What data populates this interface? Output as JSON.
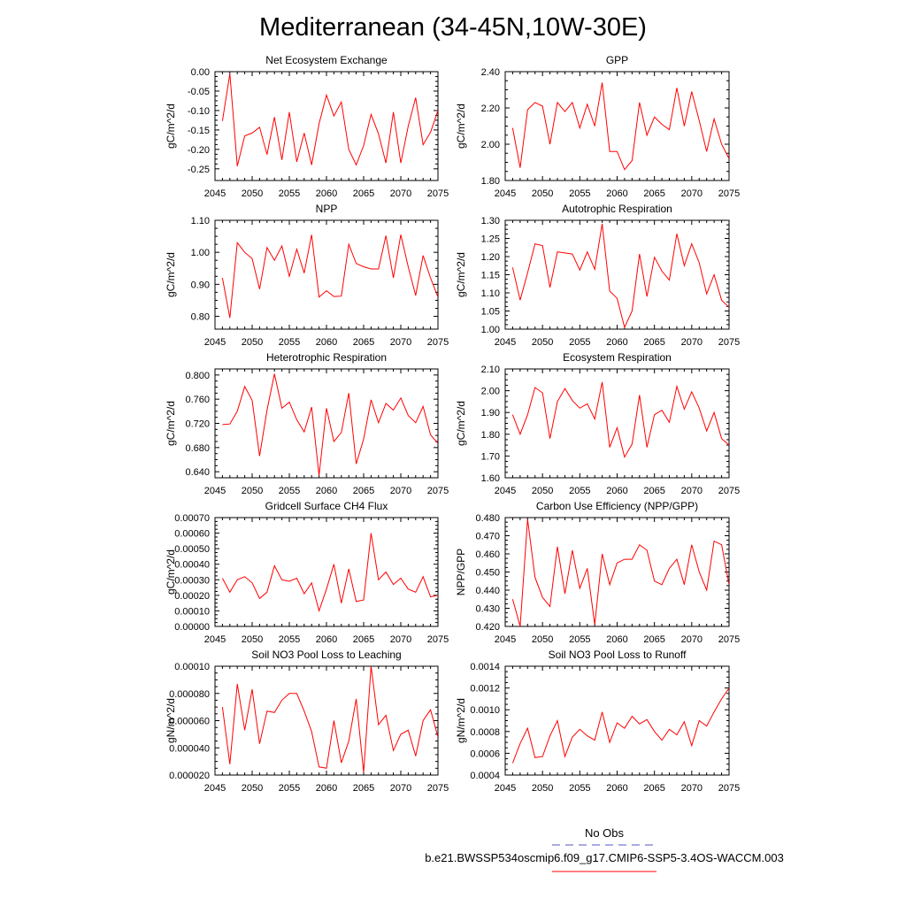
{
  "figure_title": "Mediterranean (34-45N,10W-30E)",
  "legend": {
    "obs_label": "No Obs",
    "obs_color": "#5555cc",
    "case_label": "b.e21.BWSSP534oscmip6.f09_g17.CMIP6-SSP5-3.4OS-WACCM.003",
    "case_color": "#ff0000"
  },
  "chart_data": [
    {
      "type": "line",
      "title": "Net Ecosystem Exchange",
      "ylabel": "gC/m^2/d",
      "xlim": [
        2045,
        2075
      ],
      "ylim": [
        -0.28,
        0.0
      ],
      "yticks": [
        0.0,
        -0.05,
        -0.1,
        -0.15,
        -0.2,
        -0.25
      ],
      "yticklabels": [
        "0.00",
        "-0.05",
        "-0.10",
        "-0.15",
        "-0.20",
        "-0.25"
      ],
      "xticks": [
        2045,
        2050,
        2055,
        2060,
        2065,
        2070,
        2075
      ],
      "x": [
        2046,
        2047,
        2048,
        2049,
        2050,
        2051,
        2052,
        2053,
        2054,
        2055,
        2056,
        2057,
        2058,
        2059,
        2060,
        2061,
        2062,
        2063,
        2064,
        2065,
        2066,
        2067,
        2068,
        2069,
        2070,
        2071,
        2072,
        2073,
        2074,
        2075
      ],
      "series": [
        {
          "name": "b.e21.BWSSP534oscmip6.f09_g17.CMIP6-SSP5-3.4OS-WACCM.003",
          "values": [
            -0.127,
            -0.005,
            -0.243,
            -0.165,
            -0.158,
            -0.143,
            -0.213,
            -0.117,
            -0.227,
            -0.104,
            -0.232,
            -0.158,
            -0.24,
            -0.134,
            -0.06,
            -0.114,
            -0.078,
            -0.2,
            -0.24,
            -0.19,
            -0.11,
            -0.16,
            -0.235,
            -0.104,
            -0.235,
            -0.14,
            -0.067,
            -0.188,
            -0.156,
            -0.1
          ]
        }
      ]
    },
    {
      "type": "line",
      "title": "GPP",
      "ylabel": "gC/m^2/d",
      "xlim": [
        2045,
        2075
      ],
      "ylim": [
        1.8,
        2.4
      ],
      "yticks": [
        1.8,
        2.0,
        2.2,
        2.4
      ],
      "yticklabels": [
        "1.80",
        "2.00",
        "2.20",
        "2.40"
      ],
      "xticks": [
        2045,
        2050,
        2055,
        2060,
        2065,
        2070,
        2075
      ],
      "x": [
        2046,
        2047,
        2048,
        2049,
        2050,
        2051,
        2052,
        2053,
        2054,
        2055,
        2056,
        2057,
        2058,
        2059,
        2060,
        2061,
        2062,
        2063,
        2064,
        2065,
        2066,
        2067,
        2068,
        2069,
        2070,
        2071,
        2072,
        2073,
        2074,
        2075
      ],
      "series": [
        {
          "name": "b.e21.BWSSP534oscmip6.f09_g17.CMIP6-SSP5-3.4OS-WACCM.003",
          "values": [
            2.09,
            1.87,
            2.19,
            2.23,
            2.21,
            2.0,
            2.23,
            2.18,
            2.23,
            2.09,
            2.22,
            2.1,
            2.34,
            1.96,
            1.96,
            1.86,
            1.91,
            2.23,
            2.05,
            2.15,
            2.11,
            2.08,
            2.31,
            2.1,
            2.29,
            2.13,
            1.96,
            2.14,
            2.0,
            1.92
          ]
        }
      ]
    },
    {
      "type": "line",
      "title": "NPP",
      "ylabel": "gC/m^2/d",
      "xlim": [
        2045,
        2075
      ],
      "ylim": [
        0.76,
        1.1
      ],
      "yticks": [
        0.8,
        0.9,
        1.0,
        1.1
      ],
      "yticklabels": [
        "0.80",
        "0.90",
        "1.00",
        "1.10"
      ],
      "xticks": [
        2045,
        2050,
        2055,
        2060,
        2065,
        2070,
        2075
      ],
      "x": [
        2046,
        2047,
        2048,
        2049,
        2050,
        2051,
        2052,
        2053,
        2054,
        2055,
        2056,
        2057,
        2058,
        2059,
        2060,
        2061,
        2062,
        2063,
        2064,
        2065,
        2066,
        2067,
        2068,
        2069,
        2070,
        2071,
        2072,
        2073,
        2074,
        2075
      ],
      "series": [
        {
          "name": "b.e21.BWSSP534oscmip6.f09_g17.CMIP6-SSP5-3.4OS-WACCM.003",
          "values": [
            0.92,
            0.795,
            1.03,
            1.0,
            0.98,
            0.885,
            1.015,
            0.975,
            1.02,
            0.925,
            1.01,
            0.935,
            1.055,
            0.86,
            0.88,
            0.862,
            0.863,
            1.025,
            0.965,
            0.955,
            0.948,
            0.948,
            1.052,
            0.92,
            1.055,
            0.955,
            0.865,
            0.99,
            0.92,
            0.86
          ]
        }
      ]
    },
    {
      "type": "line",
      "title": "Autotrophic Respiration",
      "ylabel": "gC/m^2/d",
      "xlim": [
        2045,
        2075
      ],
      "ylim": [
        1.0,
        1.3
      ],
      "yticks": [
        1.0,
        1.05,
        1.1,
        1.15,
        1.2,
        1.25,
        1.3
      ],
      "yticklabels": [
        "1.00",
        "1.05",
        "1.10",
        "1.15",
        "1.20",
        "1.25",
        "1.30"
      ],
      "xticks": [
        2045,
        2050,
        2055,
        2060,
        2065,
        2070,
        2075
      ],
      "x": [
        2046,
        2047,
        2048,
        2049,
        2050,
        2051,
        2052,
        2053,
        2054,
        2055,
        2056,
        2057,
        2058,
        2059,
        2060,
        2061,
        2062,
        2063,
        2064,
        2065,
        2066,
        2067,
        2068,
        2069,
        2070,
        2071,
        2072,
        2073,
        2074,
        2075
      ],
      "series": [
        {
          "name": "b.e21.BWSSP534oscmip6.f09_g17.CMIP6-SSP5-3.4OS-WACCM.003",
          "values": [
            1.17,
            1.08,
            1.155,
            1.235,
            1.23,
            1.115,
            1.213,
            1.21,
            1.207,
            1.163,
            1.213,
            1.165,
            1.29,
            1.105,
            1.085,
            1.005,
            1.05,
            1.207,
            1.09,
            1.198,
            1.16,
            1.135,
            1.263,
            1.175,
            1.235,
            1.183,
            1.097,
            1.15,
            1.08,
            1.06
          ]
        }
      ]
    },
    {
      "type": "line",
      "title": "Heterotrophic Respiration",
      "ylabel": "gC/m^2/d",
      "xlim": [
        2045,
        2075
      ],
      "ylim": [
        0.63,
        0.81
      ],
      "yticks": [
        0.64,
        0.68,
        0.72,
        0.76,
        0.8
      ],
      "yticklabels": [
        "0.640",
        "0.680",
        "0.720",
        "0.760",
        "0.800"
      ],
      "xticks": [
        2045,
        2050,
        2055,
        2060,
        2065,
        2070,
        2075
      ],
      "x": [
        2046,
        2047,
        2048,
        2049,
        2050,
        2051,
        2052,
        2053,
        2054,
        2055,
        2056,
        2057,
        2058,
        2059,
        2060,
        2061,
        2062,
        2063,
        2064,
        2065,
        2066,
        2067,
        2068,
        2069,
        2070,
        2071,
        2072,
        2073,
        2074,
        2075
      ],
      "series": [
        {
          "name": "b.e21.BWSSP534oscmip6.f09_g17.CMIP6-SSP5-3.4OS-WACCM.003",
          "values": [
            0.718,
            0.719,
            0.74,
            0.781,
            0.758,
            0.666,
            0.742,
            0.802,
            0.745,
            0.755,
            0.726,
            0.706,
            0.747,
            0.634,
            0.745,
            0.69,
            0.705,
            0.77,
            0.653,
            0.694,
            0.759,
            0.721,
            0.753,
            0.742,
            0.762,
            0.733,
            0.721,
            0.748,
            0.701,
            0.687
          ]
        }
      ]
    },
    {
      "type": "line",
      "title": "Ecosystem Respiration",
      "ylabel": "gC/m^2/d",
      "xlim": [
        2045,
        2075
      ],
      "ylim": [
        1.6,
        2.1
      ],
      "yticks": [
        1.6,
        1.7,
        1.8,
        1.9,
        2.0,
        2.1
      ],
      "yticklabels": [
        "1.60",
        "1.70",
        "1.80",
        "1.90",
        "2.00",
        "2.10"
      ],
      "xticks": [
        2045,
        2050,
        2055,
        2060,
        2065,
        2070,
        2075
      ],
      "x": [
        2046,
        2047,
        2048,
        2049,
        2050,
        2051,
        2052,
        2053,
        2054,
        2055,
        2056,
        2057,
        2058,
        2059,
        2060,
        2061,
        2062,
        2063,
        2064,
        2065,
        2066,
        2067,
        2068,
        2069,
        2070,
        2071,
        2072,
        2073,
        2074,
        2075
      ],
      "series": [
        {
          "name": "b.e21.BWSSP534oscmip6.f09_g17.CMIP6-SSP5-3.4OS-WACCM.003",
          "values": [
            1.89,
            1.8,
            1.89,
            2.015,
            1.99,
            1.78,
            1.95,
            2.01,
            1.955,
            1.92,
            1.94,
            1.87,
            2.04,
            1.74,
            1.83,
            1.695,
            1.755,
            1.98,
            1.74,
            1.89,
            1.91,
            1.855,
            2.02,
            1.915,
            1.995,
            1.92,
            1.815,
            1.9,
            1.78,
            1.75
          ]
        }
      ]
    },
    {
      "type": "line",
      "title": "Gridcell Surface CH4 Flux",
      "ylabel": "gC/m^2/d",
      "xlim": [
        2045,
        2075
      ],
      "ylim": [
        0.0,
        0.0007
      ],
      "yticks": [
        0.0,
        0.0001,
        0.0002,
        0.0003,
        0.0004,
        0.0005,
        0.0006,
        0.0007
      ],
      "yticklabels": [
        "0.00000",
        "0.00010",
        "0.00020",
        "0.00030",
        "0.00040",
        "0.00050",
        "0.00060",
        "0.00070"
      ],
      "xticks": [
        2045,
        2050,
        2055,
        2060,
        2065,
        2070,
        2075
      ],
      "x": [
        2046,
        2047,
        2048,
        2049,
        2050,
        2051,
        2052,
        2053,
        2054,
        2055,
        2056,
        2057,
        2058,
        2059,
        2060,
        2061,
        2062,
        2063,
        2064,
        2065,
        2066,
        2067,
        2068,
        2069,
        2070,
        2071,
        2072,
        2073,
        2074,
        2075
      ],
      "series": [
        {
          "name": "b.e21.BWSSP534oscmip6.f09_g17.CMIP6-SSP5-3.4OS-WACCM.003",
          "values": [
            0.00031,
            0.00022,
            0.0003,
            0.00032,
            0.00028,
            0.00018,
            0.00022,
            0.00039,
            0.0003,
            0.00029,
            0.00031,
            0.00021,
            0.00028,
            0.0001,
            0.00024,
            0.0004,
            0.00015,
            0.00037,
            0.00016,
            0.00017,
            0.0006,
            0.0003,
            0.00035,
            0.00027,
            0.00031,
            0.00024,
            0.00022,
            0.00032,
            0.00019,
            0.0002
          ]
        }
      ]
    },
    {
      "type": "line",
      "title": "Carbon Use Efficiency (NPP/GPP)",
      "ylabel": "NPP/GPP",
      "xlim": [
        2045,
        2075
      ],
      "ylim": [
        0.42,
        0.48
      ],
      "yticks": [
        0.42,
        0.43,
        0.44,
        0.45,
        0.46,
        0.47,
        0.48
      ],
      "yticklabels": [
        "0.420",
        "0.430",
        "0.440",
        "0.450",
        "0.460",
        "0.470",
        "0.480"
      ],
      "xticks": [
        2045,
        2050,
        2055,
        2060,
        2065,
        2070,
        2075
      ],
      "x": [
        2046,
        2047,
        2048,
        2049,
        2050,
        2051,
        2052,
        2053,
        2054,
        2055,
        2056,
        2057,
        2058,
        2059,
        2060,
        2061,
        2062,
        2063,
        2064,
        2065,
        2066,
        2067,
        2068,
        2069,
        2070,
        2071,
        2072,
        2073,
        2074,
        2075
      ],
      "series": [
        {
          "name": "b.e21.BWSSP534oscmip6.f09_g17.CMIP6-SSP5-3.4OS-WACCM.003",
          "values": [
            0.435,
            0.42,
            0.479,
            0.447,
            0.436,
            0.431,
            0.464,
            0.438,
            0.462,
            0.441,
            0.452,
            0.421,
            0.46,
            0.443,
            0.455,
            0.457,
            0.457,
            0.465,
            0.462,
            0.445,
            0.443,
            0.452,
            0.457,
            0.443,
            0.465,
            0.45,
            0.44,
            0.467,
            0.465,
            0.443
          ]
        }
      ]
    },
    {
      "type": "line",
      "title": "Soil NO3 Pool Loss to Leaching",
      "ylabel": "gN/m^2/d",
      "xlim": [
        2045,
        2075
      ],
      "ylim": [
        2e-05,
        0.0001
      ],
      "yticks": [
        2e-05,
        4e-05,
        6e-05,
        8e-05,
        0.0001
      ],
      "yticklabels": [
        "0.000020",
        "0.000040",
        "0.000060",
        "0.000080",
        "0.00010"
      ],
      "xticks": [
        2045,
        2050,
        2055,
        2060,
        2065,
        2070,
        2075
      ],
      "x": [
        2046,
        2047,
        2048,
        2049,
        2050,
        2051,
        2052,
        2053,
        2054,
        2055,
        2056,
        2057,
        2058,
        2059,
        2060,
        2061,
        2062,
        2063,
        2064,
        2065,
        2066,
        2067,
        2068,
        2069,
        2070,
        2071,
        2072,
        2073,
        2074,
        2075
      ],
      "series": [
        {
          "name": "b.e21.BWSSP534oscmip6.f09_g17.CMIP6-SSP5-3.4OS-WACCM.003",
          "values": [
            7e-05,
            2.8e-05,
            8.7e-05,
            5.3e-05,
            8.3e-05,
            4.3e-05,
            6.7e-05,
            6.6e-05,
            7.5e-05,
            8e-05,
            8e-05,
            6.7e-05,
            5.2e-05,
            2.6e-05,
            2.5e-05,
            6e-05,
            2.9e-05,
            4.5e-05,
            7.6e-05,
            2.2e-05,
            0.0001,
            5.7e-05,
            6.4e-05,
            3.8e-05,
            5e-05,
            5.3e-05,
            3.4e-05,
            6e-05,
            6.8e-05,
            4.8e-05
          ]
        }
      ]
    },
    {
      "type": "line",
      "title": "Soil NO3 Pool Loss to Runoff",
      "ylabel": "gN/m^2/d",
      "xlim": [
        2045,
        2075
      ],
      "ylim": [
        0.0004,
        0.0014
      ],
      "yticks": [
        0.0004,
        0.0006,
        0.0008,
        0.001,
        0.0012,
        0.0014
      ],
      "yticklabels": [
        "0.0004",
        "0.0006",
        "0.0008",
        "0.0010",
        "0.0012",
        "0.0014"
      ],
      "xticks": [
        2045,
        2050,
        2055,
        2060,
        2065,
        2070,
        2075
      ],
      "x": [
        2046,
        2047,
        2048,
        2049,
        2050,
        2051,
        2052,
        2053,
        2054,
        2055,
        2056,
        2057,
        2058,
        2059,
        2060,
        2061,
        2062,
        2063,
        2064,
        2065,
        2066,
        2067,
        2068,
        2069,
        2070,
        2071,
        2072,
        2073,
        2074,
        2075
      ],
      "series": [
        {
          "name": "b.e21.BWSSP534oscmip6.f09_g17.CMIP6-SSP5-3.4OS-WACCM.003",
          "values": [
            0.00051,
            0.00069,
            0.00083,
            0.00056,
            0.00057,
            0.00076,
            0.0009,
            0.00057,
            0.00075,
            0.00082,
            0.00076,
            0.00072,
            0.00098,
            0.0007,
            0.00088,
            0.00083,
            0.00094,
            0.00087,
            0.00091,
            0.0008,
            0.00072,
            0.00082,
            0.00077,
            0.00089,
            0.00067,
            0.0009,
            0.00085,
            0.00098,
            0.0011,
            0.0012
          ]
        }
      ]
    }
  ]
}
